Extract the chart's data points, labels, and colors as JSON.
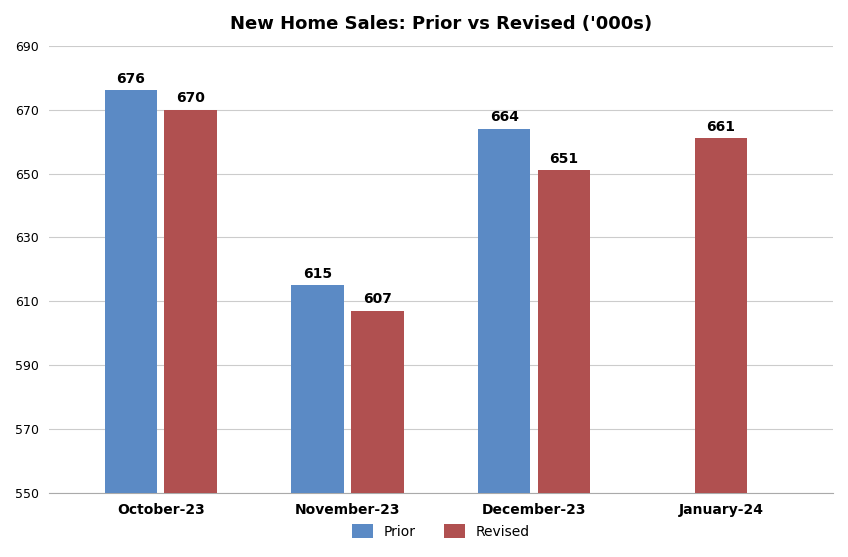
{
  "title": "New Home Sales: Prior vs Revised ('000s)",
  "categories": [
    "October-23",
    "November-23",
    "December-23",
    "January-24"
  ],
  "prior_values": [
    676,
    615,
    664,
    null
  ],
  "revised_values": [
    670,
    607,
    651,
    661
  ],
  "prior_color": "#5B8AC5",
  "revised_color": "#B05050",
  "ylim": [
    550,
    690
  ],
  "yticks": [
    550,
    570,
    590,
    610,
    630,
    650,
    670,
    690
  ],
  "bar_width": 0.28,
  "legend_labels": [
    "Prior",
    "Revised"
  ],
  "background_color": "#FFFFFF",
  "title_fontsize": 13,
  "annotation_fontsize": 10,
  "annotation_fontweight": "bold"
}
